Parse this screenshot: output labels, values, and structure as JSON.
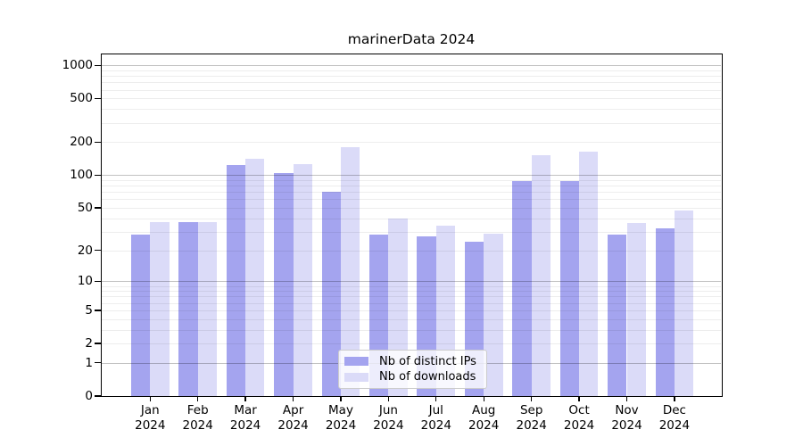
{
  "title": "marinerData 2024",
  "chart_data": {
    "type": "bar",
    "title": "marinerData 2024",
    "y_scale": "symlog (position proportional to ln(1+value))",
    "grid": true,
    "legend_position": "lower center",
    "ylim": [
      0,
      1260
    ],
    "y_ticks_labeled": [
      1000,
      500,
      200,
      100,
      50,
      20,
      10,
      5,
      2,
      1,
      0
    ],
    "y_major_gridlines": [
      1,
      10,
      100,
      1000
    ],
    "y_minor_gridlines": [
      2,
      3,
      4,
      5,
      6,
      7,
      8,
      9,
      20,
      30,
      40,
      50,
      60,
      70,
      80,
      90,
      200,
      300,
      400,
      500,
      600,
      700,
      800,
      900
    ],
    "categories": [
      "Jan 2024",
      "Feb 2024",
      "Mar 2024",
      "Apr 2024",
      "May 2024",
      "Jun 2024",
      "Jul 2024",
      "Aug 2024",
      "Sep 2024",
      "Oct 2024",
      "Nov 2024",
      "Dec 2024"
    ],
    "series": [
      {
        "name": "Nb of distinct IPs",
        "color": "#a4a4ef",
        "values": [
          28,
          37,
          125,
          105,
          70,
          28,
          27,
          24,
          89,
          89,
          28,
          32
        ]
      },
      {
        "name": "Nb of downloads",
        "color": "#dbdbf8",
        "values": [
          37,
          37,
          142,
          126,
          180,
          40,
          34,
          29,
          152,
          164,
          36,
          47
        ]
      }
    ]
  }
}
